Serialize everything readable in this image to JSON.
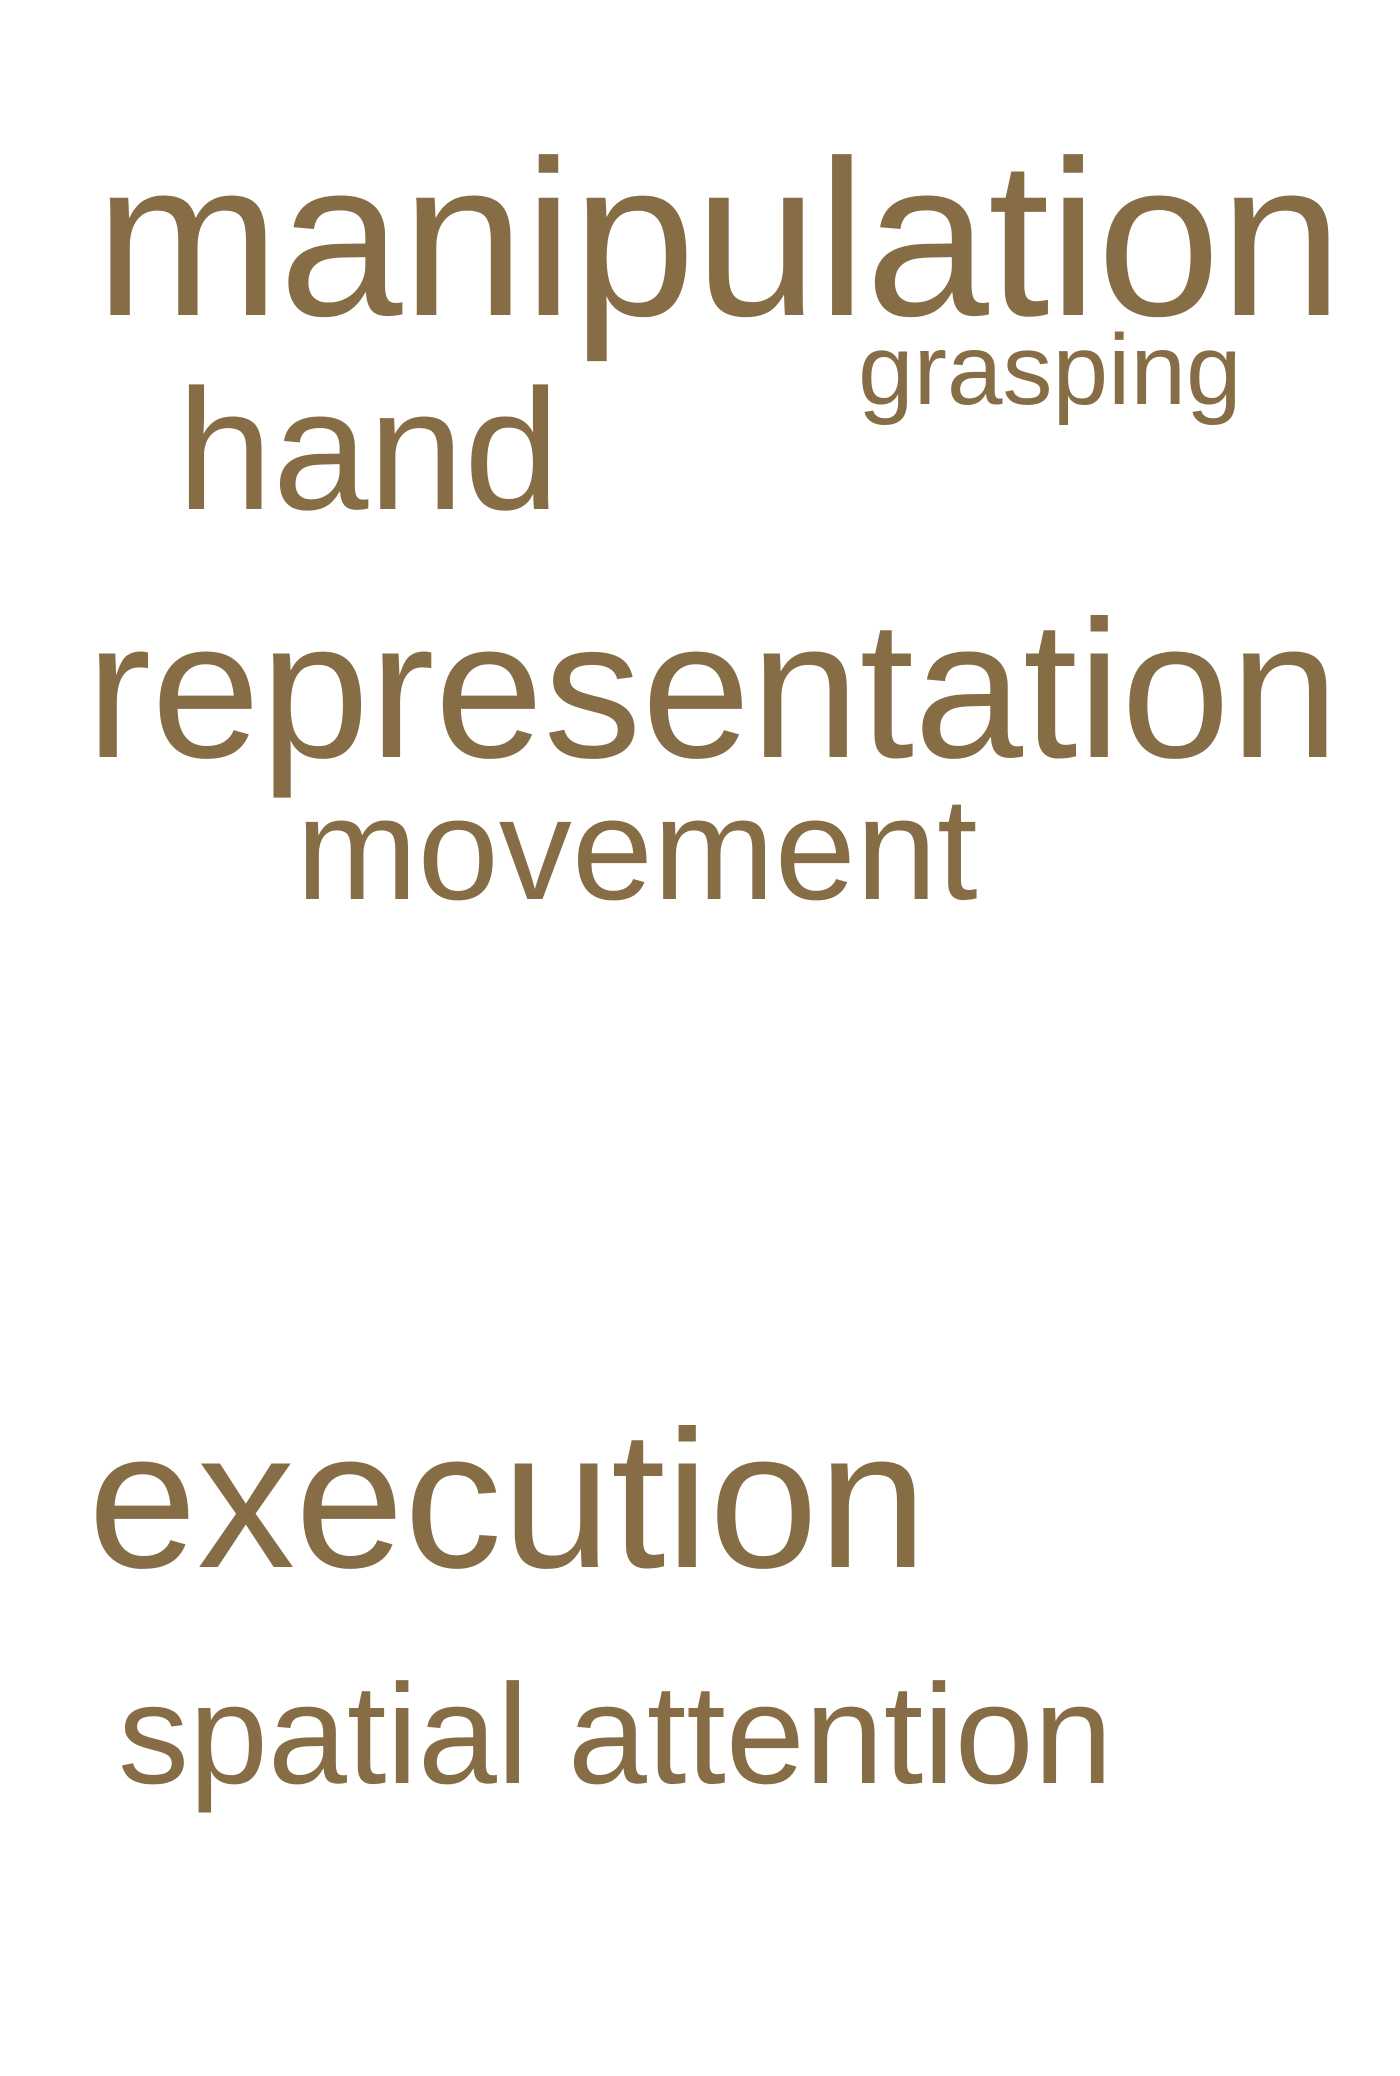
{
  "style": {
    "text_color": "#866d45",
    "background": "#ffffff"
  },
  "words": {
    "manipulation": "manipulation",
    "grasping": "grasping",
    "hand": "hand",
    "representation": "representation",
    "movement": "movement",
    "execution": "execution",
    "spatial_attention": "spatial attention"
  }
}
